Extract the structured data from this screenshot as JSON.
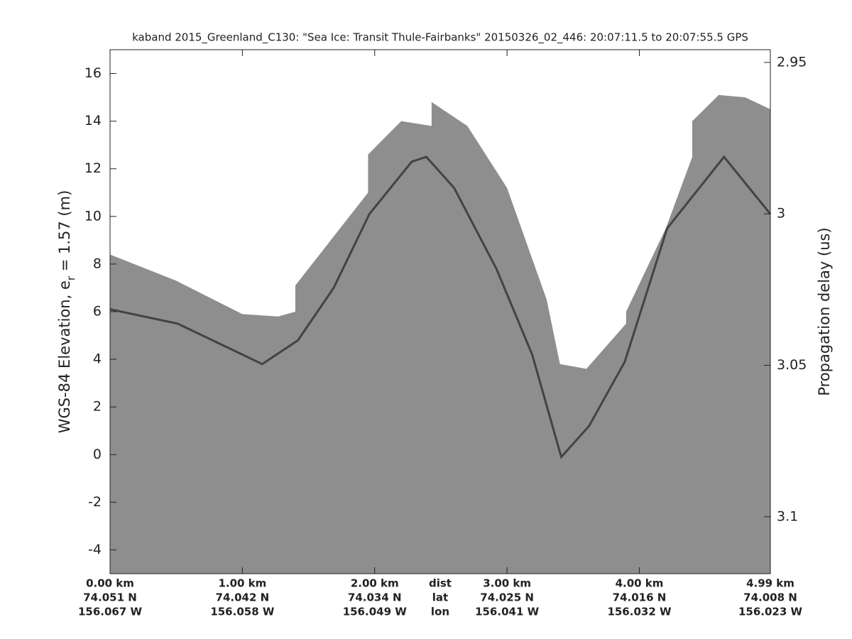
{
  "chart_data": {
    "type": "echogram",
    "title": "kaband 2015_Greenland_C130: \"Sea Ice: Transit Thule-Fairbanks\"  20150326_02_446: 20:07:11.5 to 20:07:55.5 GPS",
    "ylabel_parts": [
      "WGS-84 Elevation, e",
      "r",
      " = 1.57 (m)"
    ],
    "y2label": "Propagation delay (us)",
    "xlim": [
      0,
      4.99
    ],
    "xticks": [
      {
        "value": 0,
        "label": "0.00 km"
      },
      {
        "value": 1,
        "label": "1.00 km"
      },
      {
        "value": 2,
        "label": "2.00 km"
      },
      {
        "value": 3,
        "label": "3.00 km"
      },
      {
        "value": 4,
        "label": "4.00 km"
      },
      {
        "value": 4.99,
        "label": "4.99 km"
      }
    ],
    "lat_labels": [
      "74.051 N",
      "74.042 N",
      "74.034 N",
      "74.025 N",
      "74.016 N",
      "74.008 N"
    ],
    "lon_labels": [
      "156.067 W",
      "156.058 W",
      "156.049 W",
      "156.041 W",
      "156.032 W",
      "156.023 W"
    ],
    "row_names": [
      "dist",
      "lat",
      "lon"
    ],
    "ylim": [
      -5,
      17
    ],
    "yticks": [
      -4,
      -2,
      0,
      2,
      4,
      6,
      8,
      10,
      12,
      14,
      16
    ],
    "y2lim": [
      2.9458,
      3.1188
    ],
    "y2ticks": [
      2.95,
      3,
      3.05,
      3.1
    ],
    "series": [
      {
        "color": "#8e8e8e",
        "x": [
          0,
          0.5,
          1.0,
          1.27,
          1.4,
          1.4,
          1.95,
          1.95,
          2.2,
          2.43,
          2.43,
          2.7,
          3.0,
          3.3,
          3.4,
          3.6,
          3.9,
          3.9,
          4.2,
          4.4,
          4.4,
          4.6,
          4.8,
          4.99
        ],
        "values": [
          8.4,
          7.3,
          5.9,
          5.8,
          6.0,
          7.1,
          11.0,
          12.6,
          14.0,
          13.8,
          14.8,
          13.8,
          11.2,
          6.5,
          3.8,
          3.6,
          5.5,
          6.0,
          9.5,
          12.5,
          14.0,
          15.1,
          15.0,
          14.5
        ]
      },
      {
        "color": "#2a2a2a",
        "x": [
          0,
          0.51,
          1.0,
          1.15,
          1.42,
          1.69,
          1.96,
          2.28,
          2.39,
          2.6,
          2.92,
          3.19,
          3.41,
          3.62,
          3.89,
          4.21,
          4.64,
          4.99
        ],
        "values": [
          6.1,
          5.5,
          4.2,
          3.8,
          4.8,
          7.0,
          10.1,
          12.3,
          12.5,
          11.2,
          7.8,
          4.2,
          -0.1,
          1.2,
          3.9,
          9.5,
          12.5,
          10.1
        ]
      }
    ]
  }
}
